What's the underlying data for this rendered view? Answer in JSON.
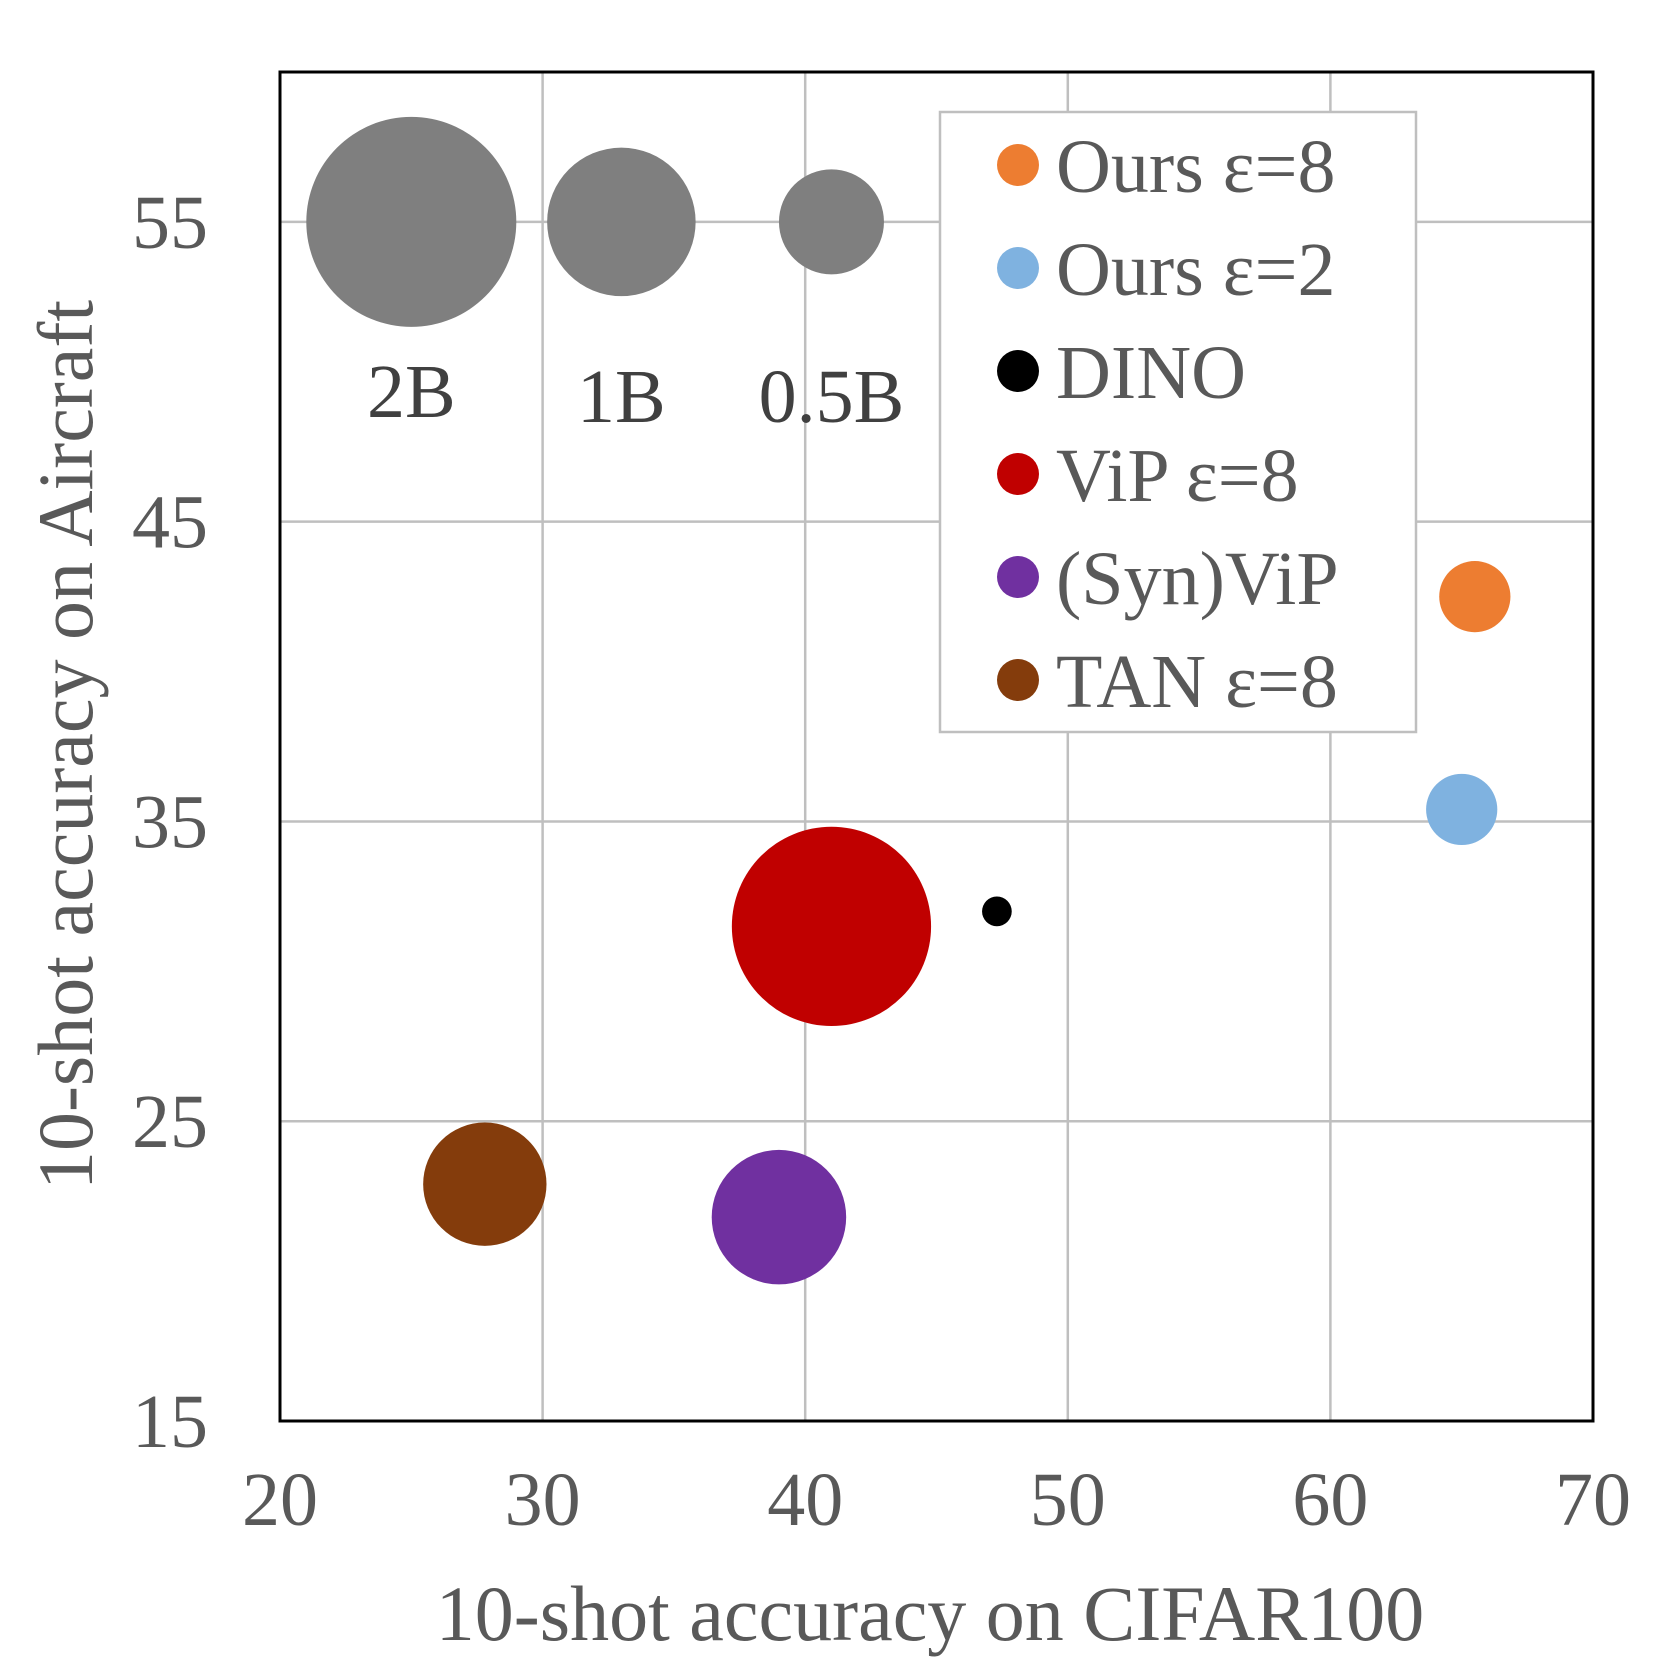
{
  "chart_data": {
    "type": "scatter",
    "subtype": "bubble",
    "title": "",
    "xlabel": "10-shot accuracy on CIFAR100",
    "ylabel": "10-shot accuracy on Aircraft",
    "xlim": [
      20,
      70
    ],
    "ylim": [
      15,
      60
    ],
    "xticks": [
      20,
      30,
      40,
      50,
      60,
      70
    ],
    "yticks": [
      15,
      25,
      35,
      45,
      55
    ],
    "grid": true,
    "legend_position": "top-right",
    "size_reference": [
      {
        "label": "2B",
        "x": 25,
        "y": 55,
        "size_billions": 2,
        "color": "#7f7f7f"
      },
      {
        "label": "1B",
        "x": 33,
        "y": 55,
        "size_billions": 1,
        "color": "#7f7f7f"
      },
      {
        "label": "0.5B",
        "x": 41,
        "y": 55,
        "size_billions": 0.5,
        "color": "#7f7f7f"
      }
    ],
    "series": [
      {
        "name": "Ours ε=8",
        "x": 65.5,
        "y": 42.5,
        "size_billions": 0.23,
        "color": "#ed7d31"
      },
      {
        "name": "Ours ε=2",
        "x": 65,
        "y": 35.4,
        "size_billions": 0.23,
        "color": "#7fb2e0"
      },
      {
        "name": "DINO",
        "x": 47.3,
        "y": 32,
        "size_billions": 0.04,
        "color": "#000000"
      },
      {
        "name": "ViP ε=8",
        "x": 41,
        "y": 31.5,
        "size_billions": 1.8,
        "color": "#c00000"
      },
      {
        "name": "(Syn)ViP",
        "x": 39,
        "y": 21.8,
        "size_billions": 0.82,
        "color": "#7030a0"
      },
      {
        "name": "TAN ε=8",
        "x": 27.8,
        "y": 22.9,
        "size_billions": 0.69,
        "color": "#843c0c"
      }
    ]
  }
}
